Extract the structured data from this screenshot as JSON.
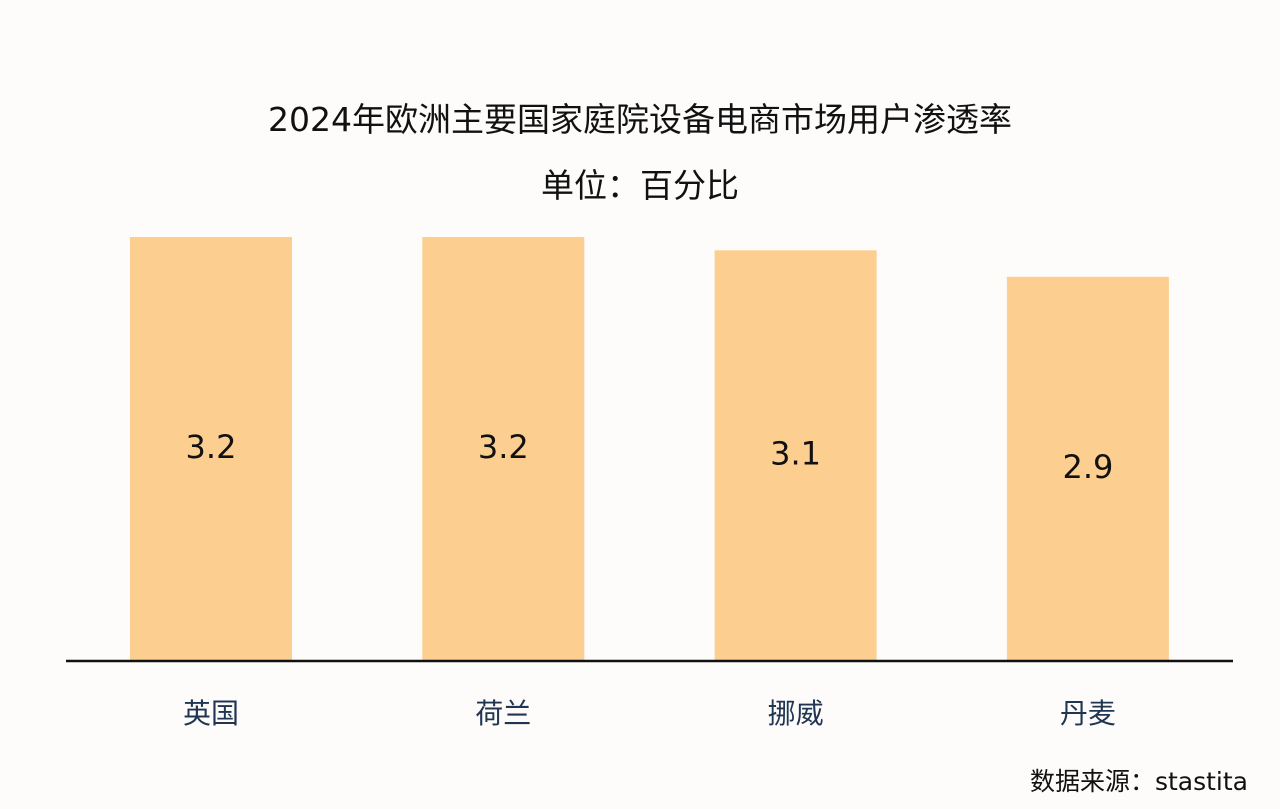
{
  "chart_data": {
    "type": "bar",
    "title": "2024年欧洲主要国家庭院设备电商市场用户渗透率",
    "subtitle": "单位：百分比",
    "categories": [
      "英国",
      "荷兰",
      "挪威",
      "丹麦"
    ],
    "values": [
      3.2,
      3.2,
      3.1,
      2.9
    ],
    "ylim": [
      0,
      3.2
    ],
    "grid": false,
    "legend": "none",
    "data_labels": "inside-center"
  },
  "source": "数据来源：stastita",
  "colors": {
    "bar": "#fcce90",
    "axis": "#111111",
    "label_text": "#111111",
    "category_text": "#1f3552",
    "background": "#fdfcfa"
  }
}
